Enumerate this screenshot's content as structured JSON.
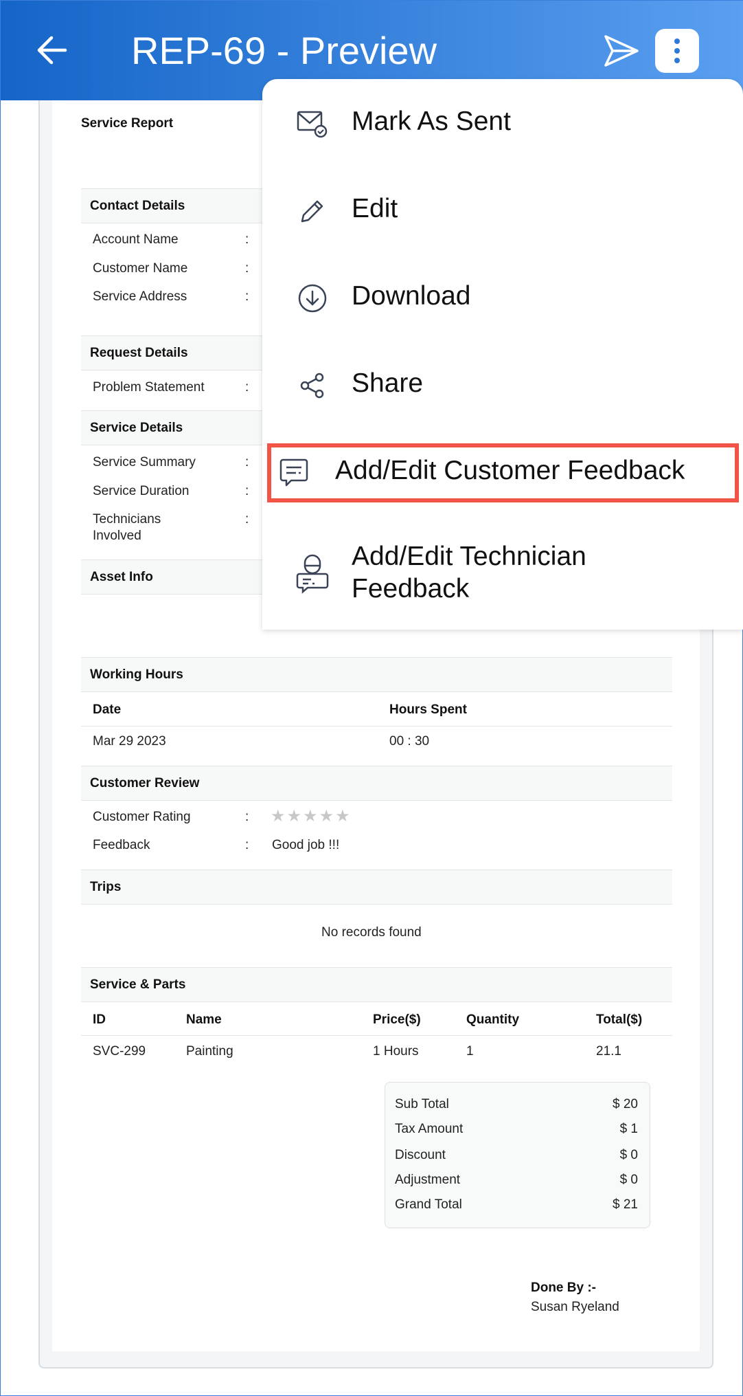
{
  "header": {
    "title": "REP-69 - Preview",
    "back_icon": "arrow-left-icon",
    "send_icon": "send-icon",
    "more_icon": "more-vertical-icon",
    "gradient": [
      "#1565c8",
      "#5a9ff0"
    ]
  },
  "report": {
    "title": "Service Report",
    "contact": {
      "heading": "Contact Details",
      "account_name": "Account Name",
      "customer_name": "Customer Name",
      "service_address": "Service Address"
    },
    "request": {
      "heading": "Request Details",
      "problem": "Problem Statement"
    },
    "service": {
      "heading": "Service Details",
      "summary": "Service Summary",
      "duration": "Service Duration",
      "technicians_1": "Technicians",
      "technicians_2": "Involved"
    },
    "asset": {
      "heading": "Asset Info"
    },
    "colon": ":",
    "working_hours": {
      "heading": "Working Hours",
      "col_date": "Date",
      "col_hours": "Hours Spent",
      "rows": [
        {
          "date": "Mar 29 2023",
          "hours": "00 : 30"
        }
      ]
    },
    "customer_review": {
      "heading": "Customer Review",
      "rating_label": "Customer Rating",
      "rating": 0,
      "rating_max": 5,
      "feedback_label": "Feedback",
      "feedback": "Good job !!!"
    },
    "trips": {
      "heading": "Trips",
      "empty": "No records found"
    },
    "service_parts": {
      "heading": "Service & Parts",
      "columns": [
        "ID",
        "Name",
        "Price($)",
        "Quantity",
        "Total($)"
      ],
      "rows": [
        {
          "id": "SVC-299",
          "name": "Painting",
          "price": "1 Hours",
          "quantity": "1",
          "total": "21.1"
        }
      ]
    },
    "summary": [
      {
        "label": "Sub Total",
        "value": "$ 20"
      },
      {
        "label": "Tax Amount",
        "value": "$ 1"
      },
      {
        "label": "Discount",
        "value": "$ 0"
      },
      {
        "label": "Adjustment",
        "value": "$ 0"
      },
      {
        "label": "Grand Total",
        "value": "$ 21"
      }
    ],
    "done_by": {
      "label": "Done By :-",
      "name": "Susan Ryeland"
    }
  },
  "menu": {
    "items": [
      {
        "label": "Mark As Sent",
        "icon": "mail-check-icon"
      },
      {
        "label": "Edit",
        "icon": "pencil-icon"
      },
      {
        "label": "Download",
        "icon": "download-icon"
      },
      {
        "label": "Share",
        "icon": "share-icon"
      },
      {
        "label": "Add/Edit Customer Feedback",
        "icon": "chat-icon",
        "highlighted": true
      },
      {
        "label": "Add/Edit Technician",
        "label_2": "Feedback",
        "icon": "technician-chat-icon"
      }
    ],
    "highlight_color": "#f25546"
  }
}
